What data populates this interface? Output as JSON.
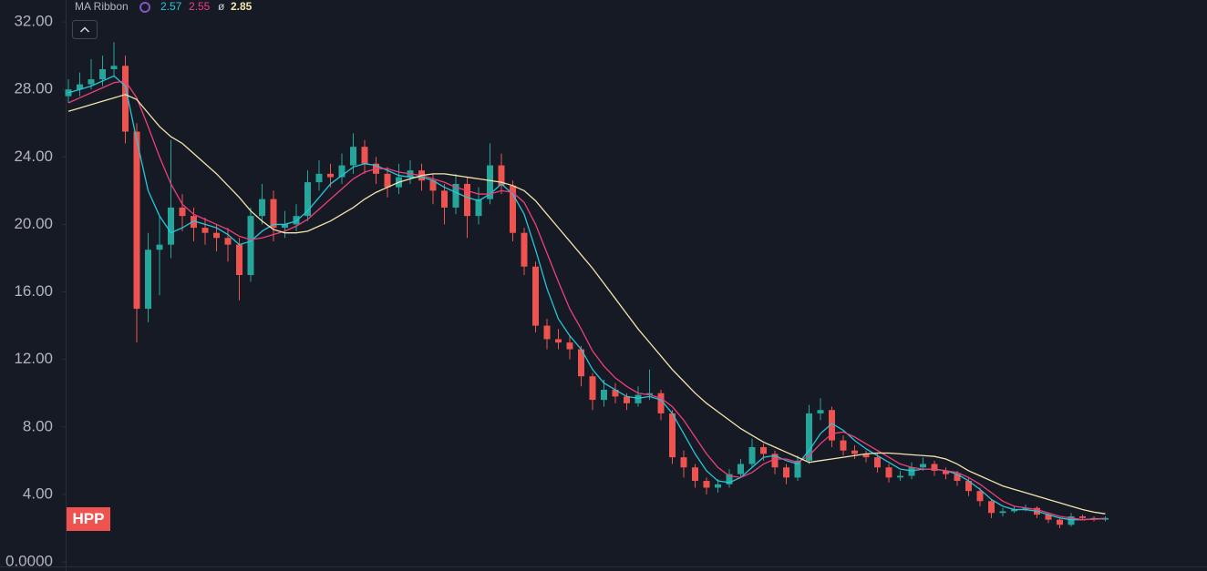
{
  "chart_data": {
    "type": "candlestick",
    "symbol": "HPP",
    "indicator": "MA Ribbon",
    "ma_symbol": "ø",
    "up_color": "#26a69a",
    "down_color": "#ef5350",
    "ylim": [
      -0.54,
      33.3
    ],
    "yticks": [
      {
        "value": 0,
        "label": "0.0000"
      },
      {
        "value": 4,
        "label": "4.00"
      },
      {
        "value": 8,
        "label": "8.00"
      },
      {
        "value": 12,
        "label": "12.00"
      },
      {
        "value": 16,
        "label": "16.00"
      },
      {
        "value": 20,
        "label": "20.00"
      },
      {
        "value": 24,
        "label": "24.00"
      },
      {
        "value": 28,
        "label": "28.00"
      },
      {
        "value": 32,
        "label": "32.00"
      }
    ],
    "open": [
      27.6,
      28.0,
      28.3,
      28.6,
      29.2,
      29.4,
      25.5,
      15.0,
      18.5,
      18.8,
      21.0,
      20.5,
      19.8,
      19.5,
      19.2,
      18.8,
      17.0,
      20.5,
      21.5,
      19.8,
      20.0,
      20.5,
      22.5,
      23.0,
      22.8,
      23.5,
      24.6,
      23.6,
      23.0,
      22.2,
      22.8,
      23.2,
      22.6,
      22.0,
      21.0,
      22.4,
      20.5,
      21.5,
      23.5,
      22.3,
      19.5,
      17.5,
      14.0,
      13.2,
      13.0,
      12.6,
      11.0,
      9.6,
      10.2,
      9.8,
      9.4,
      9.9,
      10.0,
      8.8,
      6.2,
      5.6,
      4.8,
      4.4,
      4.6,
      5.2,
      5.8,
      6.8,
      6.4,
      5.6,
      5.0,
      6.0,
      8.8,
      9.0,
      7.2,
      6.6,
      6.4,
      6.2,
      5.6,
      5.0,
      5.1,
      5.6,
      5.8,
      5.4,
      5.2,
      4.8,
      4.2,
      3.6,
      2.9,
      3.0,
      3.1,
      3.2,
      2.8,
      2.5,
      2.2,
      2.7,
      2.6,
      2.5
    ],
    "high": [
      28.6,
      29.0,
      29.8,
      30.0,
      30.8,
      30.0,
      26.0,
      19.5,
      20.5,
      25.0,
      21.8,
      21.0,
      20.4,
      20.0,
      19.8,
      19.2,
      21.0,
      22.4,
      22.0,
      20.8,
      21.2,
      23.2,
      23.8,
      23.6,
      24.2,
      25.4,
      25.0,
      24.0,
      23.4,
      23.6,
      23.8,
      23.6,
      23.0,
      22.4,
      23.0,
      22.8,
      22.2,
      24.8,
      24.2,
      22.6,
      19.8,
      17.8,
      14.4,
      13.8,
      13.4,
      12.8,
      11.2,
      10.8,
      10.6,
      10.0,
      10.4,
      11.4,
      10.2,
      9.0,
      6.6,
      5.8,
      5.0,
      4.9,
      5.5,
      6.1,
      7.3,
      7.0,
      6.6,
      5.8,
      6.3,
      9.3,
      9.7,
      9.2,
      7.5,
      6.9,
      6.6,
      6.4,
      5.8,
      5.4,
      5.9,
      6.2,
      6.0,
      5.6,
      5.4,
      5.0,
      4.4,
      3.7,
      3.2,
      3.3,
      3.4,
      3.3,
      2.9,
      2.6,
      2.9,
      2.8,
      2.7,
      2.7
    ],
    "low": [
      27.2,
      27.6,
      28.0,
      28.2,
      28.8,
      24.8,
      13.0,
      14.2,
      15.8,
      18.0,
      19.6,
      19.0,
      18.8,
      18.4,
      17.8,
      15.5,
      16.6,
      20.0,
      19.0,
      19.2,
      19.6,
      20.2,
      22.0,
      22.2,
      22.4,
      23.0,
      23.0,
      22.4,
      21.6,
      21.8,
      22.4,
      22.0,
      21.2,
      20.0,
      20.6,
      19.2,
      20.0,
      21.2,
      21.8,
      19.0,
      17.0,
      13.6,
      12.6,
      12.6,
      12.0,
      10.4,
      9.0,
      9.2,
      9.4,
      9.0,
      9.2,
      9.6,
      8.4,
      5.8,
      5.0,
      4.4,
      4.0,
      4.1,
      4.4,
      5.0,
      5.6,
      6.0,
      5.2,
      4.6,
      4.8,
      5.8,
      8.4,
      6.8,
      6.3,
      6.1,
      5.9,
      5.3,
      4.7,
      4.8,
      4.9,
      5.4,
      5.1,
      4.9,
      4.5,
      3.9,
      3.3,
      2.6,
      2.7,
      2.9,
      3.0,
      2.6,
      2.3,
      2.0,
      2.1,
      2.5,
      2.4,
      2.4
    ],
    "close": [
      28.0,
      28.3,
      28.6,
      29.2,
      29.4,
      25.5,
      15.0,
      18.5,
      18.8,
      21.0,
      20.5,
      19.8,
      19.5,
      19.2,
      18.8,
      17.0,
      20.5,
      21.5,
      19.8,
      20.0,
      20.5,
      22.5,
      23.0,
      22.8,
      23.5,
      24.6,
      23.6,
      23.0,
      22.2,
      22.8,
      23.2,
      22.6,
      22.0,
      21.0,
      22.4,
      20.5,
      21.5,
      23.5,
      22.3,
      19.5,
      17.5,
      14.0,
      13.2,
      13.0,
      12.6,
      11.0,
      9.6,
      10.2,
      9.8,
      9.4,
      9.9,
      10.0,
      8.8,
      6.2,
      5.6,
      4.8,
      4.4,
      4.6,
      5.2,
      5.8,
      6.8,
      6.4,
      5.6,
      5.0,
      6.0,
      8.8,
      9.0,
      7.2,
      6.6,
      6.4,
      6.2,
      5.6,
      5.0,
      5.1,
      5.6,
      5.8,
      5.4,
      5.2,
      4.8,
      4.2,
      3.6,
      2.9,
      3.0,
      3.1,
      3.2,
      2.8,
      2.5,
      2.2,
      2.7,
      2.6,
      2.5,
      2.6
    ],
    "series": [
      {
        "color": "#26c6da",
        "values": [
          27.8,
          28.0,
          28.2,
          28.5,
          28.8,
          28.2,
          25.0,
          22.0,
          20.5,
          19.5,
          19.8,
          20.2,
          20.0,
          19.8,
          19.4,
          18.8,
          19.0,
          19.6,
          20.0,
          20.0,
          20.2,
          20.8,
          21.6,
          22.4,
          22.9,
          23.4,
          23.6,
          23.5,
          23.2,
          22.9,
          22.8,
          22.8,
          22.6,
          22.2,
          21.9,
          21.6,
          21.4,
          21.8,
          22.4,
          21.8,
          20.6,
          18.5,
          16.2,
          14.4,
          13.4,
          12.6,
          11.4,
          10.6,
          10.2,
          9.8,
          9.7,
          9.8,
          9.6,
          8.8,
          7.6,
          6.4,
          5.4,
          4.8,
          4.7,
          5.0,
          5.6,
          6.2,
          6.3,
          6.0,
          5.8,
          6.6,
          7.6,
          8.2,
          7.8,
          7.2,
          6.7,
          6.3,
          5.9,
          5.5,
          5.4,
          5.5,
          5.5,
          5.4,
          5.2,
          4.8,
          4.3,
          3.7,
          3.3,
          3.1,
          3.1,
          3.0,
          2.8,
          2.6,
          2.5,
          2.5,
          2.55,
          2.57
        ]
      },
      {
        "color": "#ec407a",
        "values": [
          27.2,
          27.5,
          27.8,
          28.1,
          28.4,
          28.5,
          27.5,
          25.8,
          24.0,
          22.4,
          21.2,
          20.6,
          20.3,
          20.0,
          19.7,
          19.3,
          19.1,
          19.2,
          19.4,
          19.6,
          19.9,
          20.3,
          20.9,
          21.5,
          22.1,
          22.7,
          23.1,
          23.3,
          23.3,
          23.1,
          23.0,
          22.9,
          22.7,
          22.5,
          22.2,
          22.0,
          21.8,
          21.8,
          22.0,
          21.9,
          21.3,
          20.0,
          18.3,
          16.6,
          15.0,
          13.8,
          12.5,
          11.6,
          10.9,
          10.4,
          10.0,
          9.9,
          9.7,
          9.2,
          8.4,
          7.4,
          6.4,
          5.6,
          5.1,
          5.0,
          5.3,
          5.8,
          6.1,
          6.1,
          5.9,
          6.3,
          7.0,
          7.6,
          7.7,
          7.4,
          7.0,
          6.6,
          6.2,
          5.8,
          5.6,
          5.5,
          5.5,
          5.4,
          5.3,
          5.0,
          4.6,
          4.1,
          3.6,
          3.3,
          3.2,
          3.1,
          2.9,
          2.7,
          2.6,
          2.5,
          2.53,
          2.55
        ]
      },
      {
        "color": "#f3e5ab",
        "values": [
          26.7,
          26.9,
          27.1,
          27.3,
          27.5,
          27.7,
          27.4,
          26.6,
          25.8,
          25.2,
          24.8,
          24.2,
          23.6,
          23.0,
          22.3,
          21.6,
          20.8,
          20.2,
          19.7,
          19.5,
          19.5,
          19.6,
          19.9,
          20.2,
          20.6,
          21.0,
          21.5,
          21.9,
          22.2,
          22.5,
          22.7,
          22.9,
          23.0,
          23.0,
          22.9,
          22.8,
          22.7,
          22.6,
          22.5,
          22.3,
          22.0,
          21.4,
          20.6,
          19.8,
          19.0,
          18.2,
          17.4,
          16.5,
          15.6,
          14.7,
          13.8,
          13.0,
          12.2,
          11.4,
          10.7,
          10.0,
          9.4,
          8.9,
          8.4,
          7.9,
          7.5,
          7.1,
          6.8,
          6.5,
          6.2,
          5.9,
          6.0,
          6.1,
          6.2,
          6.3,
          6.4,
          6.45,
          6.45,
          6.4,
          6.35,
          6.3,
          6.25,
          6.1,
          5.8,
          5.4,
          5.1,
          4.8,
          4.5,
          4.3,
          4.1,
          3.9,
          3.7,
          3.5,
          3.3,
          3.1,
          2.95,
          2.85
        ]
      }
    ]
  }
}
